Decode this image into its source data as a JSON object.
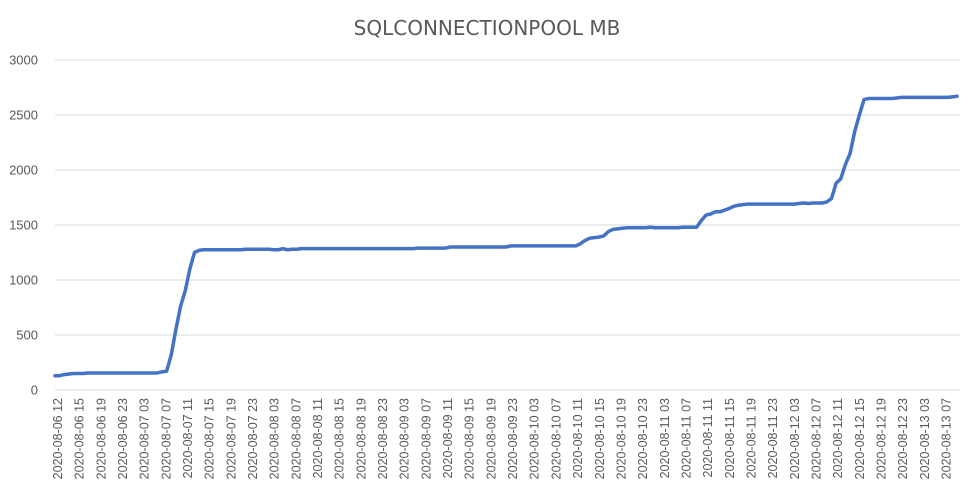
{
  "chart_data": {
    "type": "line",
    "title": "SQLCONNECTIONPOOL MB",
    "xlabel": "",
    "ylabel": "",
    "ylim": [
      0,
      3000
    ],
    "yticks": [
      "0",
      "500",
      "1000",
      "1500",
      "2000",
      "2500",
      "3000"
    ],
    "grid": true,
    "legend": "none",
    "color": "#4472C4",
    "xticks": [
      "2020-08-06 12",
      "2020-08-06 15",
      "2020-08-06 19",
      "2020-08-06 23",
      "2020-08-07 03",
      "2020-08-07 07",
      "2020-08-07 11",
      "2020-08-07 15",
      "2020-08-07 19",
      "2020-08-07 23",
      "2020-08-08 03",
      "2020-08-08 07",
      "2020-08-08 11",
      "2020-08-08 15",
      "2020-08-08 19",
      "2020-08-08 23",
      "2020-08-09 03",
      "2020-08-09 07",
      "2020-08-09 11",
      "2020-08-09 15",
      "2020-08-09 19",
      "2020-08-09 23",
      "2020-08-10 03",
      "2020-08-10 07",
      "2020-08-10 11",
      "2020-08-10 15",
      "2020-08-10 19",
      "2020-08-10 23",
      "2020-08-11 03",
      "2020-08-11 07",
      "2020-08-11 11",
      "2020-08-11 15",
      "2020-08-11 19",
      "2020-08-11 23",
      "2020-08-12 03",
      "2020-08-12 07",
      "2020-08-12 11",
      "2020-08-12 15",
      "2020-08-12 19",
      "2020-08-12 23",
      "2020-08-13 03",
      "2020-08-13 07"
    ],
    "series": [
      {
        "values": [
          130,
          130,
          140,
          145,
          150,
          150,
          150,
          155,
          155,
          155,
          155,
          155,
          155,
          155,
          155,
          155,
          155,
          155,
          155,
          155,
          155,
          155,
          155,
          165,
          170,
          320,
          550,
          760,
          900,
          1100,
          1250,
          1270,
          1275,
          1275,
          1275,
          1275,
          1275,
          1275,
          1275,
          1275,
          1275,
          1280,
          1280,
          1280,
          1280,
          1280,
          1280,
          1275,
          1275,
          1285,
          1275,
          1280,
          1280,
          1285,
          1285,
          1285,
          1285,
          1285,
          1285,
          1285,
          1285,
          1285,
          1285,
          1285,
          1285,
          1285,
          1285,
          1285,
          1285,
          1285,
          1285,
          1285,
          1285,
          1285,
          1285,
          1285,
          1285,
          1285,
          1290,
          1290,
          1290,
          1290,
          1290,
          1290,
          1290,
          1300,
          1300,
          1300,
          1300,
          1300,
          1300,
          1300,
          1300,
          1300,
          1300,
          1300,
          1300,
          1300,
          1310,
          1310,
          1310,
          1310,
          1310,
          1310,
          1310,
          1310,
          1310,
          1310,
          1310,
          1310,
          1310,
          1310,
          1310,
          1330,
          1360,
          1380,
          1385,
          1390,
          1400,
          1440,
          1460,
          1465,
          1470,
          1475,
          1475,
          1475,
          1475,
          1475,
          1480,
          1475,
          1475,
          1475,
          1475,
          1475,
          1475,
          1480,
          1480,
          1480,
          1480,
          1540,
          1590,
          1600,
          1620,
          1620,
          1635,
          1650,
          1670,
          1680,
          1685,
          1690,
          1690,
          1690,
          1690,
          1690,
          1690,
          1690,
          1690,
          1690,
          1690,
          1690,
          1695,
          1700,
          1695,
          1700,
          1700,
          1700,
          1710,
          1740,
          1880,
          1920,
          2050,
          2150,
          2350,
          2500,
          2640,
          2650,
          2650,
          2650,
          2650,
          2650,
          2650,
          2655,
          2660,
          2660,
          2660,
          2660,
          2660,
          2660,
          2660,
          2660,
          2660,
          2660,
          2660,
          2665,
          2670
        ]
      }
    ]
  }
}
